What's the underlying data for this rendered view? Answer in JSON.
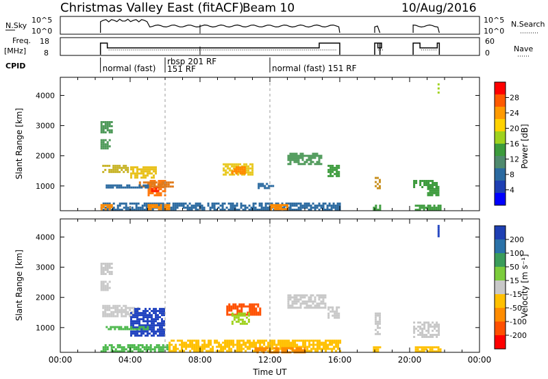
{
  "header": {
    "title": "Christmas Valley East (fitACF)",
    "beam": "Beam 10",
    "date": "10/Aug/2016"
  },
  "top_panels": {
    "nsky_label": "N.Sky",
    "nsky_ticks": [
      "10^5",
      "10^0"
    ],
    "nsearch_ticks": [
      "10^5",
      "10^0"
    ],
    "nsearch_label": "N.Search",
    "freq_label": "Freq.",
    "freq_unit": "[MHz]",
    "freq_ticks": [
      "18",
      "8"
    ],
    "nave_ticks": [
      "60",
      "0"
    ],
    "nave_label": "Nave",
    "cpid_label": "CPID",
    "cpid_segments": [
      {
        "label": "normal (fast)",
        "sub": "",
        "start_h": 2.3
      },
      {
        "label": "rbsp 201 RF",
        "sub": "151 RF",
        "start_h": 6.0
      },
      {
        "label": "normal (fast) 151 RF",
        "sub": "",
        "start_h": 12.0
      }
    ]
  },
  "power_colorbar": {
    "label": "Power [dB]",
    "ticks": [
      "28",
      "24",
      "20",
      "16",
      "12",
      "8",
      "4"
    ],
    "colors": [
      "#ff0000",
      "#ff5a00",
      "#ff9a00",
      "#ffd200",
      "#9fd21e",
      "#3c9b3c",
      "#4f8a6e",
      "#2b6aa0",
      "#1e3fb3",
      "#0000ff"
    ]
  },
  "velocity_colorbar": {
    "label": "Velocity [m s⁻¹]",
    "ticks": [
      "200",
      "100",
      "50",
      "15",
      "-15",
      "-50",
      "-100",
      "-200"
    ],
    "colors": [
      "#1e3fb3",
      "#2a72a8",
      "#3a9c5a",
      "#7ccc3c",
      "#c8c8c8",
      "#ffc000",
      "#ff8c00",
      "#ff5000",
      "#ff0000"
    ]
  },
  "chart_data": {
    "type": "heatmap",
    "xlabel": "Time UT",
    "x_ticks": [
      "00:00",
      "04:00",
      "08:00",
      "12:00",
      "16:00",
      "20:00",
      "00:00"
    ],
    "x_range_hours": [
      0,
      24
    ],
    "ylabel": "Slant Range [km]",
    "y_ticks": [
      1000,
      2000,
      3000,
      4000
    ],
    "y_range": [
      180,
      4600
    ],
    "dashed_time_markers_h": [
      6.0,
      12.0
    ],
    "power_blobs": [
      {
        "t0": 2.3,
        "t1": 2.9,
        "r0": 2800,
        "r1": 3150,
        "c": "#4f9a5a"
      },
      {
        "t0": 2.3,
        "t1": 2.8,
        "r0": 2250,
        "r1": 2550,
        "c": "#4f9a5a"
      },
      {
        "t0": 2.4,
        "t1": 3.9,
        "r0": 1450,
        "r1": 1700,
        "c": "#c8b428"
      },
      {
        "t0": 4.0,
        "t1": 5.5,
        "r0": 1300,
        "r1": 1650,
        "c": "#e9c21e"
      },
      {
        "t0": 5.0,
        "t1": 6.0,
        "r0": 700,
        "r1": 1200,
        "c": "#ff7a10"
      },
      {
        "t0": 5.2,
        "t1": 5.6,
        "r0": 850,
        "r1": 1000,
        "c": "#ff2000"
      },
      {
        "t0": 4.5,
        "t1": 6.4,
        "r0": 950,
        "r1": 1150,
        "c": "#e07a1a"
      },
      {
        "t0": 2.6,
        "t1": 5.0,
        "r0": 950,
        "r1": 1050,
        "c": "#2b6aa0"
      },
      {
        "t0": 9.3,
        "t1": 11.0,
        "r0": 1350,
        "r1": 1750,
        "c": "#e8c81e"
      },
      {
        "t0": 9.8,
        "t1": 10.6,
        "r0": 1400,
        "r1": 1650,
        "c": "#ff8a00"
      },
      {
        "t0": 11.3,
        "t1": 12.2,
        "r0": 900,
        "r1": 1100,
        "c": "#2b6aa0"
      },
      {
        "t0": 13.0,
        "t1": 15.0,
        "r0": 1700,
        "r1": 2100,
        "c": "#4f9a5a"
      },
      {
        "t0": 15.3,
        "t1": 16.0,
        "r0": 1300,
        "r1": 1700,
        "c": "#3c9b3c"
      },
      {
        "t0": 18.0,
        "t1": 18.3,
        "r0": 950,
        "r1": 1300,
        "c": "#c89020"
      },
      {
        "t0": 20.2,
        "t1": 21.5,
        "r0": 950,
        "r1": 1200,
        "c": "#3c9b3c"
      },
      {
        "t0": 21.0,
        "t1": 21.7,
        "r0": 700,
        "r1": 1000,
        "c": "#3c9b3c"
      },
      {
        "t0": 21.6,
        "t1": 21.7,
        "r0": 4000,
        "r1": 4400,
        "c": "#9fd21e"
      },
      {
        "t0": 2.3,
        "t1": 16.0,
        "r0": 200,
        "r1": 450,
        "c": "#2b6aa0"
      },
      {
        "t0": 5.0,
        "t1": 6.2,
        "r0": 250,
        "r1": 400,
        "c": "#ff8a00"
      },
      {
        "t0": 2.3,
        "t1": 3.0,
        "r0": 250,
        "r1": 400,
        "c": "#ff8a00"
      },
      {
        "t0": 12.0,
        "t1": 13.0,
        "r0": 250,
        "r1": 400,
        "c": "#ff8a00"
      },
      {
        "t0": 20.3,
        "t1": 21.8,
        "r0": 200,
        "r1": 380,
        "c": "#3c9b3c"
      },
      {
        "t0": 17.9,
        "t1": 18.3,
        "r0": 200,
        "r1": 380,
        "c": "#3c9b3c"
      }
    ],
    "velocity_blobs": [
      {
        "t0": 2.3,
        "t1": 2.9,
        "r0": 2800,
        "r1": 3150,
        "c": "#c8c8c8"
      },
      {
        "t0": 2.3,
        "t1": 2.8,
        "r0": 2250,
        "r1": 2550,
        "c": "#c8c8c8"
      },
      {
        "t0": 2.4,
        "t1": 4.5,
        "r0": 1400,
        "r1": 1750,
        "c": "#c8c8c8"
      },
      {
        "t0": 4.0,
        "t1": 6.0,
        "r0": 700,
        "r1": 1650,
        "c": "#2244c0"
      },
      {
        "t0": 2.6,
        "t1": 5.0,
        "r0": 950,
        "r1": 1050,
        "c": "#4cb84c"
      },
      {
        "t0": 9.5,
        "t1": 11.5,
        "r0": 1400,
        "r1": 1800,
        "c": "#ff5000"
      },
      {
        "t0": 9.8,
        "t1": 10.8,
        "r0": 1100,
        "r1": 1500,
        "c": "#9fd21e"
      },
      {
        "t0": 13.0,
        "t1": 15.2,
        "r0": 1650,
        "r1": 2100,
        "c": "#c8c8c8"
      },
      {
        "t0": 15.3,
        "t1": 16.0,
        "r0": 1300,
        "r1": 1700,
        "c": "#c8c8c8"
      },
      {
        "t0": 18.0,
        "t1": 18.3,
        "r0": 800,
        "r1": 1500,
        "c": "#c8c8c8"
      },
      {
        "t0": 20.2,
        "t1": 21.7,
        "r0": 700,
        "r1": 1200,
        "c": "#c8c8c8"
      },
      {
        "t0": 21.6,
        "t1": 21.7,
        "r0": 4000,
        "r1": 4400,
        "c": "#2244c0"
      },
      {
        "t0": 2.3,
        "t1": 6.2,
        "r0": 200,
        "r1": 450,
        "c": "#4cb84c"
      },
      {
        "t0": 6.2,
        "t1": 16.0,
        "r0": 200,
        "r1": 600,
        "c": "#ffc000"
      },
      {
        "t0": 11.0,
        "t1": 14.0,
        "r0": 200,
        "r1": 350,
        "c": "#ff8c00"
      },
      {
        "t0": 20.3,
        "t1": 21.8,
        "r0": 200,
        "r1": 380,
        "c": "#ffc000"
      },
      {
        "t0": 17.9,
        "t1": 18.3,
        "r0": 200,
        "r1": 380,
        "c": "#ffc000"
      }
    ],
    "freq_on_segments_h": [
      [
        2.3,
        16.0
      ],
      [
        18.0,
        18.3
      ],
      [
        20.2,
        21.7
      ]
    ]
  }
}
